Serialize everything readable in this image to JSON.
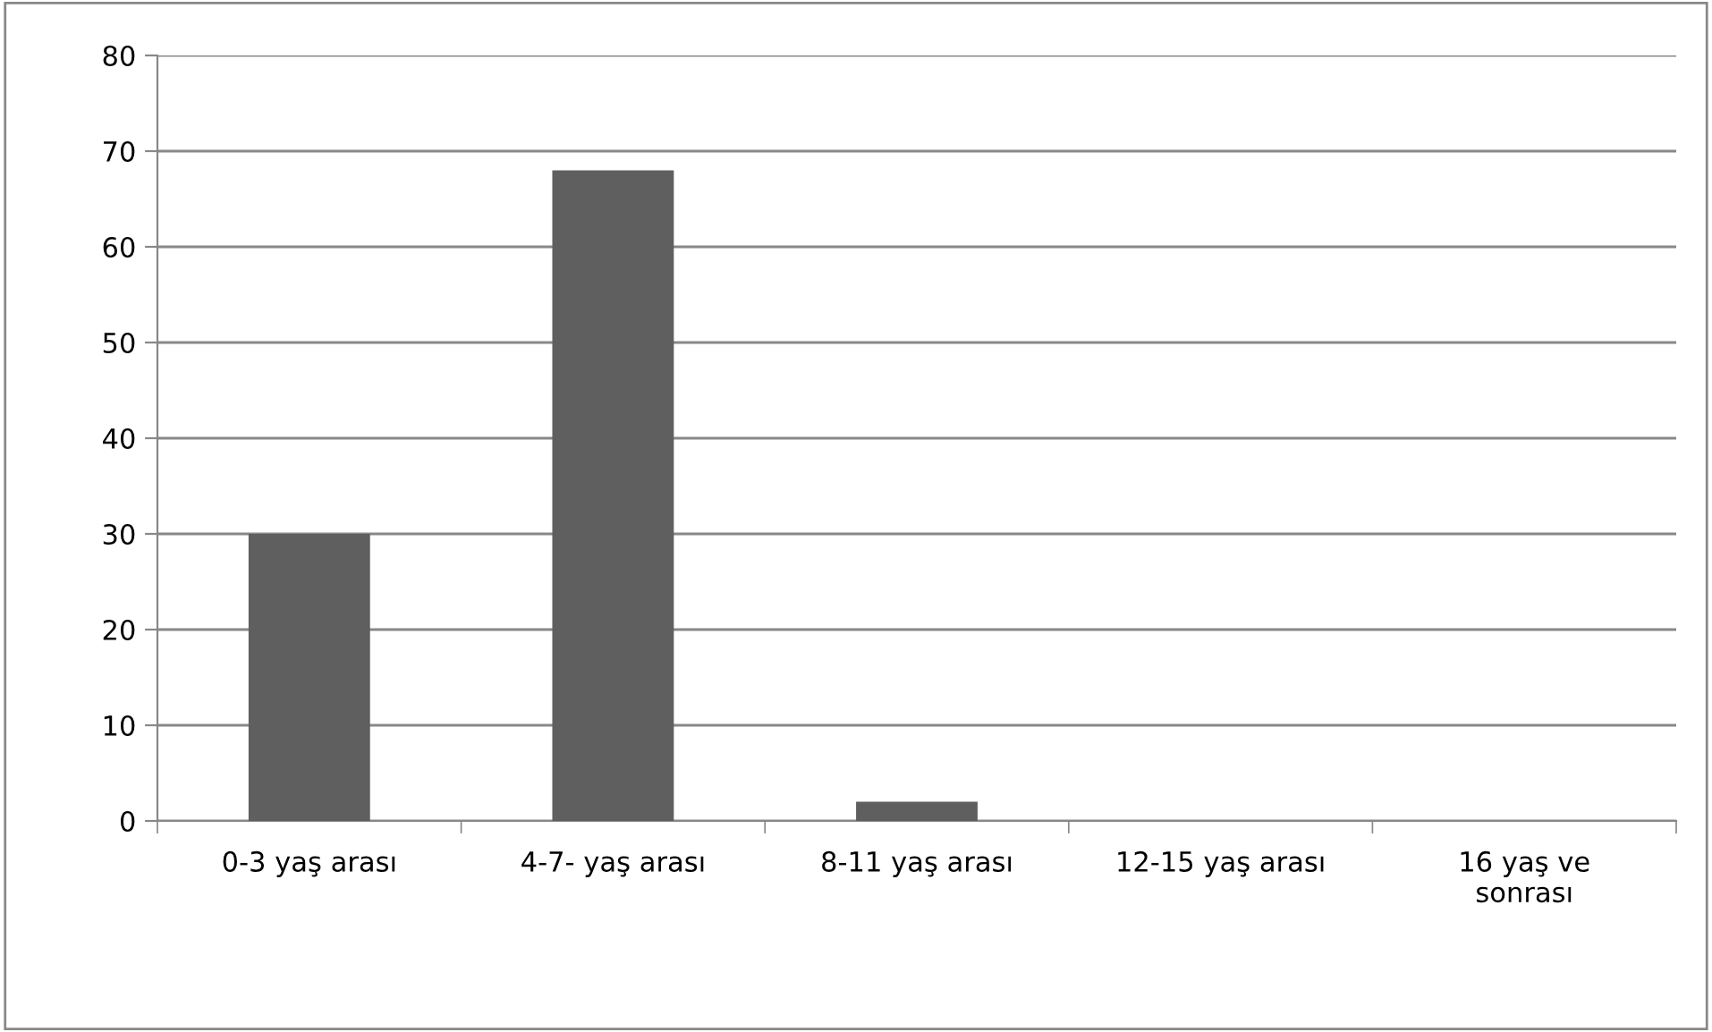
{
  "chart_data": {
    "type": "bar",
    "categories": [
      "0-3 yaş arası",
      "4-7- yaş arası",
      "8-11 yaş arası",
      "12-15 yaş arası",
      "16 yaş ve\nsonrası"
    ],
    "values": [
      30,
      68,
      2,
      0,
      0
    ],
    "color": "#5f5f5f",
    "ylim": [
      0,
      80
    ],
    "yticks": [
      0,
      10,
      20,
      30,
      40,
      50,
      60,
      70,
      80
    ],
    "grid": "y",
    "legend": false
  }
}
